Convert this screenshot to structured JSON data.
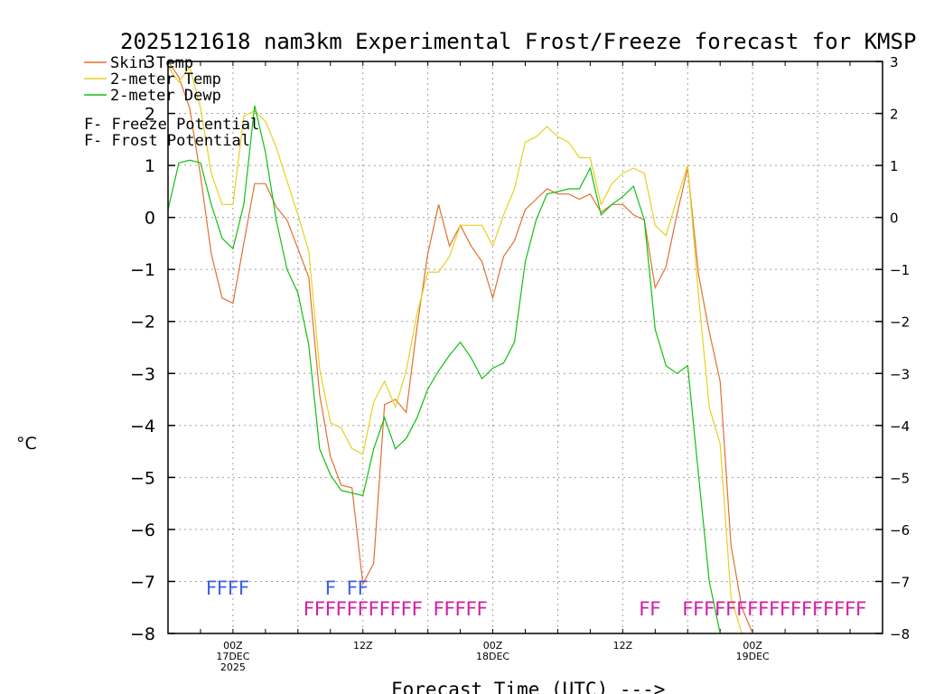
{
  "chart_data": {
    "type": "line",
    "title": "2025121618 nam3km Experimental Frost/Freeze forecast for KMSP",
    "xlabel": "Forecast Time (UTC) --->",
    "ylabel": "°C",
    "ylim": [
      -8,
      3
    ],
    "xlim": [
      18,
      84
    ],
    "grid": true,
    "y_ticks": [
      "3",
      "2",
      "1",
      "0",
      "−1",
      "−2",
      "−3",
      "−4",
      "−5",
      "−6",
      "−7",
      "−8"
    ],
    "x_ticks": [
      {
        "hour": 24,
        "lines": [
          "00Z",
          "17DEC",
          "2025"
        ]
      },
      {
        "hour": 36,
        "lines": [
          "12Z"
        ]
      },
      {
        "hour": 48,
        "lines": [
          "00Z",
          "18DEC"
        ]
      },
      {
        "hour": 60,
        "lines": [
          "12Z"
        ]
      },
      {
        "hour": 72,
        "lines": [
          "00Z",
          "19DEC"
        ]
      }
    ],
    "legend": {
      "placement": "top-left",
      "entries": [
        {
          "label": "Skin Temp",
          "color": "#e07030"
        },
        {
          "label": "2-meter Temp",
          "color": "#e8d020"
        },
        {
          "label": "2-meter Dewp",
          "color": "#10c010"
        },
        {
          "prefix": "F",
          "label": " - Freeze Potential",
          "color": "#d020a0"
        },
        {
          "prefix": "F",
          "label": " - Frost Potential",
          "color": "#4060e0"
        }
      ]
    },
    "series": [
      {
        "name": "Skin Temp",
        "color": "#e07030",
        "x": [
          18,
          19,
          20,
          21,
          22,
          23,
          24,
          25,
          26,
          27,
          28,
          29,
          30,
          31,
          32,
          33,
          34,
          35,
          36,
          37,
          38,
          39,
          40,
          41,
          42,
          43,
          44,
          45,
          46,
          47,
          48,
          49,
          50,
          51,
          52,
          53,
          54,
          55,
          56,
          57,
          58,
          59,
          60,
          61,
          62,
          63,
          64,
          65,
          66,
          67,
          68,
          69,
          70,
          71,
          72
        ],
        "y": [
          3.0,
          2.7,
          2.1,
          0.8,
          -0.7,
          -1.55,
          -1.65,
          -0.5,
          0.65,
          0.65,
          0.2,
          -0.05,
          -0.6,
          -1.15,
          -3.4,
          -4.6,
          -5.15,
          -5.2,
          -7.05,
          -6.65,
          -3.6,
          -3.5,
          -3.75,
          -2.1,
          -0.7,
          0.25,
          -0.55,
          -0.15,
          -0.55,
          -0.85,
          -1.55,
          -0.75,
          -0.45,
          0.15,
          0.35,
          0.55,
          0.45,
          0.45,
          0.35,
          0.45,
          0.1,
          0.25,
          0.25,
          0.05,
          -0.05,
          -1.35,
          -0.95,
          0.05,
          0.95,
          -1.1,
          -2.2,
          -3.15,
          -6.3,
          -7.5,
          -8.0
        ]
      },
      {
        "name": "2-meter Temp",
        "color": "#e8d020",
        "x": [
          18,
          19,
          20,
          21,
          22,
          23,
          24,
          25,
          26,
          27,
          28,
          29,
          30,
          31,
          32,
          33,
          34,
          35,
          36,
          37,
          38,
          39,
          40,
          41,
          42,
          43,
          44,
          45,
          46,
          47,
          48,
          49,
          50,
          51,
          52,
          53,
          54,
          55,
          56,
          57,
          58,
          59,
          60,
          61,
          62,
          63,
          64,
          65,
          66,
          67,
          68,
          69,
          70,
          71
        ],
        "y": [
          2.9,
          2.6,
          2.9,
          2.1,
          0.85,
          0.25,
          0.25,
          1.95,
          2.05,
          1.85,
          1.35,
          0.7,
          0.05,
          -0.65,
          -2.9,
          -3.95,
          -4.05,
          -4.45,
          -4.55,
          -3.55,
          -3.15,
          -3.65,
          -2.95,
          -1.85,
          -1.05,
          -1.05,
          -0.75,
          -0.15,
          -0.15,
          -0.15,
          -0.55,
          0.05,
          0.55,
          1.45,
          1.55,
          1.75,
          1.55,
          1.45,
          1.15,
          1.15,
          0.25,
          0.65,
          0.85,
          0.95,
          0.85,
          -0.15,
          -0.35,
          0.35,
          1.0,
          -1.5,
          -3.65,
          -4.35,
          -7.3,
          -8.0
        ]
      },
      {
        "name": "2-meter Dewp",
        "color": "#10c010",
        "x": [
          18,
          19,
          20,
          21,
          22,
          23,
          24,
          25,
          26,
          27,
          28,
          29,
          30,
          31,
          32,
          33,
          34,
          35,
          36,
          37,
          38,
          39,
          40,
          41,
          42,
          43,
          44,
          45,
          46,
          47,
          48,
          49,
          50,
          51,
          52,
          53,
          54,
          55,
          56,
          57,
          58,
          59,
          60,
          61,
          62,
          63,
          64,
          65,
          66,
          67,
          68,
          69,
          70
        ],
        "y": [
          0.15,
          1.05,
          1.1,
          1.05,
          0.25,
          -0.4,
          -0.6,
          0.25,
          2.15,
          1.25,
          -0.05,
          -1.0,
          -1.45,
          -2.45,
          -4.45,
          -4.95,
          -5.25,
          -5.3,
          -5.35,
          -4.45,
          -3.85,
          -4.45,
          -4.25,
          -3.85,
          -3.3,
          -2.95,
          -2.65,
          -2.4,
          -2.7,
          -3.1,
          -2.9,
          -2.8,
          -2.4,
          -0.85,
          -0.05,
          0.45,
          0.5,
          0.55,
          0.55,
          0.95,
          0.05,
          0.25,
          0.4,
          0.6,
          -0.05,
          -2.15,
          -2.85,
          -3.0,
          -2.85,
          -4.95,
          -7.0,
          -8.0,
          -8.0
        ]
      }
    ],
    "frost_freeze_rows": [
      {
        "label": "Frost Potential",
        "color": "#4060e0",
        "row": "upper",
        "flags": [
          {
            "hour": 22,
            "text": "F"
          },
          {
            "hour": 23,
            "text": "F"
          },
          {
            "hour": 24,
            "text": "F"
          },
          {
            "hour": 25,
            "text": "F"
          },
          {
            "hour": 33,
            "text": "F"
          },
          {
            "hour": 35,
            "text": "F"
          },
          {
            "hour": 36,
            "text": "F"
          }
        ]
      },
      {
        "label": "Freeze Potential",
        "color": "#d020a0",
        "row": "lower",
        "flags": [
          {
            "hour": 31,
            "text": "F"
          },
          {
            "hour": 32,
            "text": "F"
          },
          {
            "hour": 33,
            "text": "F"
          },
          {
            "hour": 34,
            "text": "F"
          },
          {
            "hour": 35,
            "text": "F"
          },
          {
            "hour": 36,
            "text": "F"
          },
          {
            "hour": 37,
            "text": "F"
          },
          {
            "hour": 38,
            "text": "F"
          },
          {
            "hour": 39,
            "text": "F"
          },
          {
            "hour": 40,
            "text": "F"
          },
          {
            "hour": 41,
            "text": "F"
          },
          {
            "hour": 43,
            "text": "F"
          },
          {
            "hour": 44,
            "text": "F"
          },
          {
            "hour": 45,
            "text": "F"
          },
          {
            "hour": 46,
            "text": "F"
          },
          {
            "hour": 47,
            "text": "F"
          },
          {
            "hour": 62,
            "text": "F"
          },
          {
            "hour": 63,
            "text": "F"
          },
          {
            "hour": 66,
            "text": "F"
          },
          {
            "hour": 67,
            "text": "F"
          },
          {
            "hour": 68,
            "text": "F"
          },
          {
            "hour": 69,
            "text": "F"
          },
          {
            "hour": 70,
            "text": "F"
          },
          {
            "hour": 71,
            "text": "F"
          },
          {
            "hour": 72,
            "text": "F"
          },
          {
            "hour": 73,
            "text": "F"
          },
          {
            "hour": 74,
            "text": "F"
          },
          {
            "hour": 75,
            "text": "F"
          },
          {
            "hour": 76,
            "text": "F"
          },
          {
            "hour": 77,
            "text": "F"
          },
          {
            "hour": 78,
            "text": "F"
          },
          {
            "hour": 79,
            "text": "F"
          },
          {
            "hour": 80,
            "text": "F"
          },
          {
            "hour": 81,
            "text": "F"
          },
          {
            "hour": 82,
            "text": "F"
          }
        ]
      }
    ]
  }
}
